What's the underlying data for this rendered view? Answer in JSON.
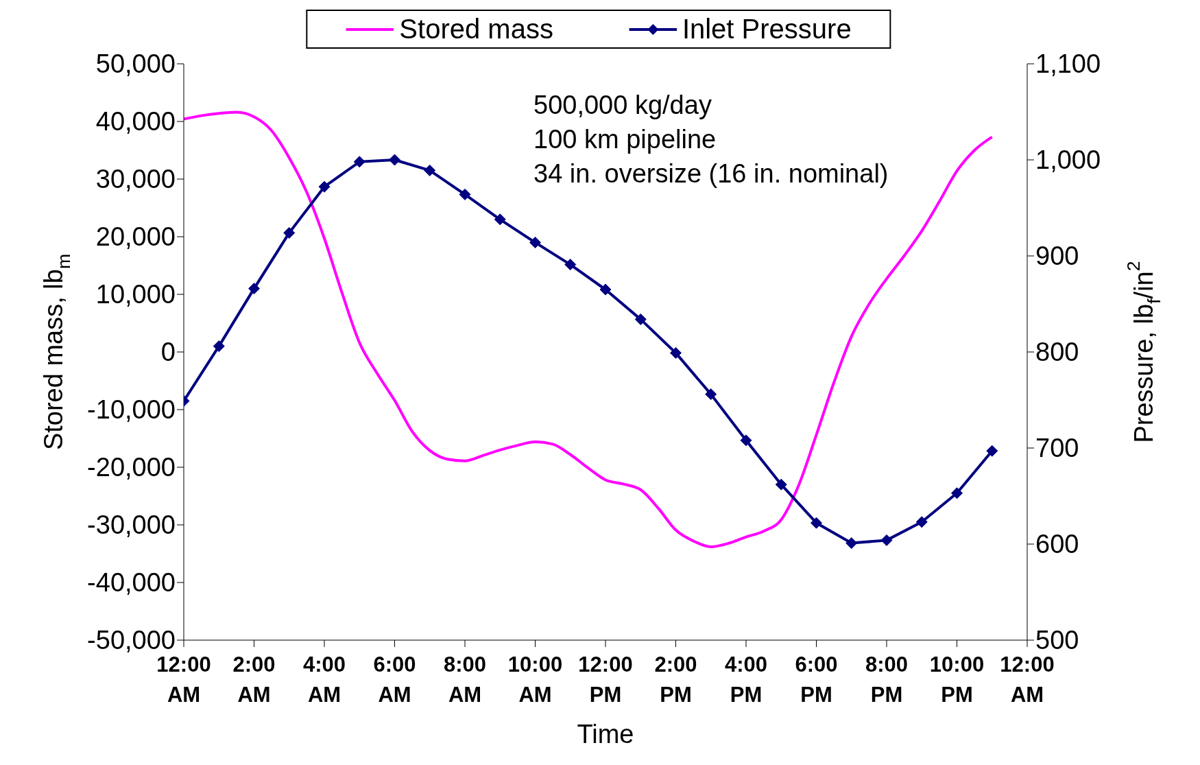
{
  "chart_data": {
    "type": "line",
    "xlabel": "Time",
    "ylabel": "Stored mass, lb$_{m}$",
    "y2label": "Pressure, lb$_{f}$/in$^{2}$",
    "annotations": [
      "500,000 kg/day",
      "100 km pipeline",
      "34 in. oversize (16 in. nominal)"
    ],
    "xlim": [
      0,
      24
    ],
    "xticks": [
      {
        "value": 0,
        "label": "12:00 AM"
      },
      {
        "value": 2,
        "label": "2:00 AM"
      },
      {
        "value": 4,
        "label": "4:00 AM"
      },
      {
        "value": 6,
        "label": "6:00 AM"
      },
      {
        "value": 8,
        "label": "8:00 AM"
      },
      {
        "value": 10,
        "label": "10:00 AM"
      },
      {
        "value": 12,
        "label": "12:00 PM"
      },
      {
        "value": 14,
        "label": "2:00 PM"
      },
      {
        "value": 16,
        "label": "4:00 PM"
      },
      {
        "value": 18,
        "label": "6:00 PM"
      },
      {
        "value": 20,
        "label": "8:00 PM"
      },
      {
        "value": 22,
        "label": "10:00 PM"
      },
      {
        "value": 24,
        "label": "12:00 AM"
      }
    ],
    "ylim": [
      -50000,
      50000
    ],
    "yticks": [
      {
        "value": -50000,
        "label": "-50,000"
      },
      {
        "value": -40000,
        "label": "-40,000"
      },
      {
        "value": -30000,
        "label": "-30,000"
      },
      {
        "value": -20000,
        "label": "-20,000"
      },
      {
        "value": -10000,
        "label": "-10,000"
      },
      0,
      {
        "value": 10000,
        "label": "10,000"
      },
      {
        "value": 20000,
        "label": "20,000"
      },
      {
        "value": 30000,
        "label": "30,000"
      },
      {
        "value": 40000,
        "label": "40,000"
      },
      {
        "value": 50000,
        "label": "50,000"
      }
    ],
    "y2lim": [
      500,
      1100
    ],
    "y2ticks": [
      500,
      600,
      700,
      800,
      900,
      {
        "value": 1000,
        "label": "1,000"
      },
      {
        "value": 1100,
        "label": "1,100"
      }
    ],
    "legend": "top",
    "series": [
      {
        "name": "Stored mass",
        "color": "#ff00ff",
        "marker": "none",
        "x": [
          0,
          0.5,
          1,
          1.5,
          2,
          2.5,
          3,
          3.5,
          4,
          4.5,
          5,
          5.5,
          6,
          6.5,
          7,
          7.5,
          8,
          8.5,
          9,
          9.5,
          10,
          10.5,
          11,
          11.5,
          12,
          12.5,
          13,
          13.5,
          14,
          14.5,
          15,
          15.5,
          16,
          16.5,
          17,
          17.5,
          18,
          18.5,
          19,
          19.5,
          20,
          20.5,
          21,
          21.5,
          22,
          22.5,
          23
        ],
        "values": [
          40400,
          41000,
          41400,
          41600,
          40800,
          38400,
          33700,
          27700,
          19700,
          10300,
          1600,
          -3700,
          -8400,
          -13800,
          -17100,
          -18600,
          -18900,
          -18000,
          -17000,
          -16200,
          -15600,
          -16000,
          -17800,
          -20100,
          -22200,
          -22900,
          -23900,
          -27100,
          -30900,
          -32800,
          -33800,
          -33200,
          -32100,
          -31100,
          -29100,
          -23100,
          -14400,
          -5300,
          2700,
          8300,
          12700,
          16700,
          21000,
          26100,
          31400,
          35000,
          37300
        ]
      },
      {
        "name": "Inlet Pressure",
        "color": "#000080",
        "marker": "diamond",
        "axis": "y2",
        "x": [
          0,
          1,
          2,
          3,
          4,
          5,
          6,
          7,
          8,
          9,
          10,
          11,
          12,
          13,
          14,
          15,
          16,
          17,
          18,
          19,
          20,
          21,
          22,
          23
        ],
        "values": [
          749,
          806,
          866,
          924,
          972,
          998,
          1000,
          989,
          964,
          938,
          914,
          891,
          865,
          834,
          799,
          756,
          708,
          662,
          622,
          601,
          604,
          623,
          653,
          697
        ]
      }
    ]
  }
}
